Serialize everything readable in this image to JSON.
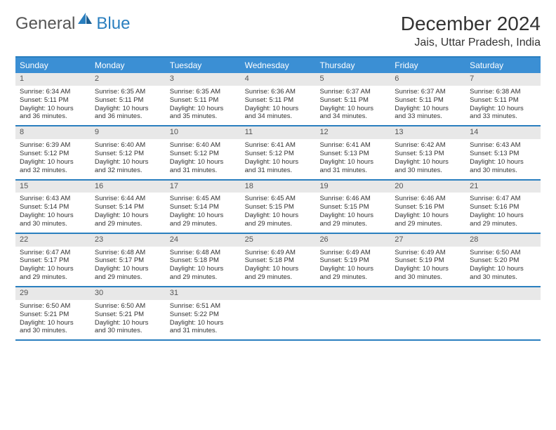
{
  "brand": {
    "part1": "General",
    "part2": "Blue"
  },
  "title": "December 2024",
  "location": "Jais, Uttar Pradesh, India",
  "colors": {
    "header_bg": "#3b8fd4",
    "border": "#2a7fbf",
    "daynum_bg": "#e8e8e8",
    "text": "#333333",
    "white": "#ffffff"
  },
  "day_names": [
    "Sunday",
    "Monday",
    "Tuesday",
    "Wednesday",
    "Thursday",
    "Friday",
    "Saturday"
  ],
  "weeks": [
    [
      {
        "n": "1",
        "sr": "Sunrise: 6:34 AM",
        "ss": "Sunset: 5:11 PM",
        "d1": "Daylight: 10 hours",
        "d2": "and 36 minutes."
      },
      {
        "n": "2",
        "sr": "Sunrise: 6:35 AM",
        "ss": "Sunset: 5:11 PM",
        "d1": "Daylight: 10 hours",
        "d2": "and 36 minutes."
      },
      {
        "n": "3",
        "sr": "Sunrise: 6:35 AM",
        "ss": "Sunset: 5:11 PM",
        "d1": "Daylight: 10 hours",
        "d2": "and 35 minutes."
      },
      {
        "n": "4",
        "sr": "Sunrise: 6:36 AM",
        "ss": "Sunset: 5:11 PM",
        "d1": "Daylight: 10 hours",
        "d2": "and 34 minutes."
      },
      {
        "n": "5",
        "sr": "Sunrise: 6:37 AM",
        "ss": "Sunset: 5:11 PM",
        "d1": "Daylight: 10 hours",
        "d2": "and 34 minutes."
      },
      {
        "n": "6",
        "sr": "Sunrise: 6:37 AM",
        "ss": "Sunset: 5:11 PM",
        "d1": "Daylight: 10 hours",
        "d2": "and 33 minutes."
      },
      {
        "n": "7",
        "sr": "Sunrise: 6:38 AM",
        "ss": "Sunset: 5:11 PM",
        "d1": "Daylight: 10 hours",
        "d2": "and 33 minutes."
      }
    ],
    [
      {
        "n": "8",
        "sr": "Sunrise: 6:39 AM",
        "ss": "Sunset: 5:12 PM",
        "d1": "Daylight: 10 hours",
        "d2": "and 32 minutes."
      },
      {
        "n": "9",
        "sr": "Sunrise: 6:40 AM",
        "ss": "Sunset: 5:12 PM",
        "d1": "Daylight: 10 hours",
        "d2": "and 32 minutes."
      },
      {
        "n": "10",
        "sr": "Sunrise: 6:40 AM",
        "ss": "Sunset: 5:12 PM",
        "d1": "Daylight: 10 hours",
        "d2": "and 31 minutes."
      },
      {
        "n": "11",
        "sr": "Sunrise: 6:41 AM",
        "ss": "Sunset: 5:12 PM",
        "d1": "Daylight: 10 hours",
        "d2": "and 31 minutes."
      },
      {
        "n": "12",
        "sr": "Sunrise: 6:41 AM",
        "ss": "Sunset: 5:13 PM",
        "d1": "Daylight: 10 hours",
        "d2": "and 31 minutes."
      },
      {
        "n": "13",
        "sr": "Sunrise: 6:42 AM",
        "ss": "Sunset: 5:13 PM",
        "d1": "Daylight: 10 hours",
        "d2": "and 30 minutes."
      },
      {
        "n": "14",
        "sr": "Sunrise: 6:43 AM",
        "ss": "Sunset: 5:13 PM",
        "d1": "Daylight: 10 hours",
        "d2": "and 30 minutes."
      }
    ],
    [
      {
        "n": "15",
        "sr": "Sunrise: 6:43 AM",
        "ss": "Sunset: 5:14 PM",
        "d1": "Daylight: 10 hours",
        "d2": "and 30 minutes."
      },
      {
        "n": "16",
        "sr": "Sunrise: 6:44 AM",
        "ss": "Sunset: 5:14 PM",
        "d1": "Daylight: 10 hours",
        "d2": "and 29 minutes."
      },
      {
        "n": "17",
        "sr": "Sunrise: 6:45 AM",
        "ss": "Sunset: 5:14 PM",
        "d1": "Daylight: 10 hours",
        "d2": "and 29 minutes."
      },
      {
        "n": "18",
        "sr": "Sunrise: 6:45 AM",
        "ss": "Sunset: 5:15 PM",
        "d1": "Daylight: 10 hours",
        "d2": "and 29 minutes."
      },
      {
        "n": "19",
        "sr": "Sunrise: 6:46 AM",
        "ss": "Sunset: 5:15 PM",
        "d1": "Daylight: 10 hours",
        "d2": "and 29 minutes."
      },
      {
        "n": "20",
        "sr": "Sunrise: 6:46 AM",
        "ss": "Sunset: 5:16 PM",
        "d1": "Daylight: 10 hours",
        "d2": "and 29 minutes."
      },
      {
        "n": "21",
        "sr": "Sunrise: 6:47 AM",
        "ss": "Sunset: 5:16 PM",
        "d1": "Daylight: 10 hours",
        "d2": "and 29 minutes."
      }
    ],
    [
      {
        "n": "22",
        "sr": "Sunrise: 6:47 AM",
        "ss": "Sunset: 5:17 PM",
        "d1": "Daylight: 10 hours",
        "d2": "and 29 minutes."
      },
      {
        "n": "23",
        "sr": "Sunrise: 6:48 AM",
        "ss": "Sunset: 5:17 PM",
        "d1": "Daylight: 10 hours",
        "d2": "and 29 minutes."
      },
      {
        "n": "24",
        "sr": "Sunrise: 6:48 AM",
        "ss": "Sunset: 5:18 PM",
        "d1": "Daylight: 10 hours",
        "d2": "and 29 minutes."
      },
      {
        "n": "25",
        "sr": "Sunrise: 6:49 AM",
        "ss": "Sunset: 5:18 PM",
        "d1": "Daylight: 10 hours",
        "d2": "and 29 minutes."
      },
      {
        "n": "26",
        "sr": "Sunrise: 6:49 AM",
        "ss": "Sunset: 5:19 PM",
        "d1": "Daylight: 10 hours",
        "d2": "and 29 minutes."
      },
      {
        "n": "27",
        "sr": "Sunrise: 6:49 AM",
        "ss": "Sunset: 5:19 PM",
        "d1": "Daylight: 10 hours",
        "d2": "and 30 minutes."
      },
      {
        "n": "28",
        "sr": "Sunrise: 6:50 AM",
        "ss": "Sunset: 5:20 PM",
        "d1": "Daylight: 10 hours",
        "d2": "and 30 minutes."
      }
    ],
    [
      {
        "n": "29",
        "sr": "Sunrise: 6:50 AM",
        "ss": "Sunset: 5:21 PM",
        "d1": "Daylight: 10 hours",
        "d2": "and 30 minutes."
      },
      {
        "n": "30",
        "sr": "Sunrise: 6:50 AM",
        "ss": "Sunset: 5:21 PM",
        "d1": "Daylight: 10 hours",
        "d2": "and 30 minutes."
      },
      {
        "n": "31",
        "sr": "Sunrise: 6:51 AM",
        "ss": "Sunset: 5:22 PM",
        "d1": "Daylight: 10 hours",
        "d2": "and 31 minutes."
      },
      {
        "empty": true
      },
      {
        "empty": true
      },
      {
        "empty": true
      },
      {
        "empty": true
      }
    ]
  ]
}
